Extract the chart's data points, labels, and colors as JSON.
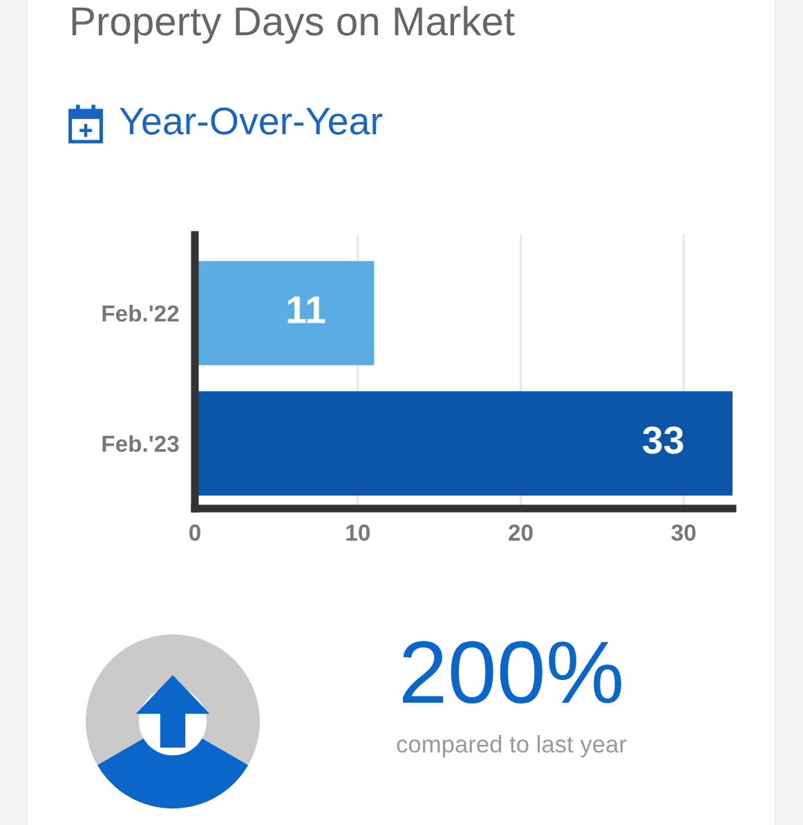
{
  "chart_data": {
    "type": "bar",
    "orientation": "horizontal",
    "title": "Property Days on Market",
    "subtitle": "Year-Over-Year",
    "categories": [
      "Feb.'22",
      "Feb.'23"
    ],
    "values": [
      11,
      33
    ],
    "colors": [
      "#5aace3",
      "#0b55aa"
    ],
    "data_labels": true,
    "xlim": [
      0,
      33
    ],
    "xticks": [
      0,
      10,
      20,
      30
    ],
    "grid": "x",
    "annotations": [
      "200%",
      "compared to last year"
    ]
  }
}
